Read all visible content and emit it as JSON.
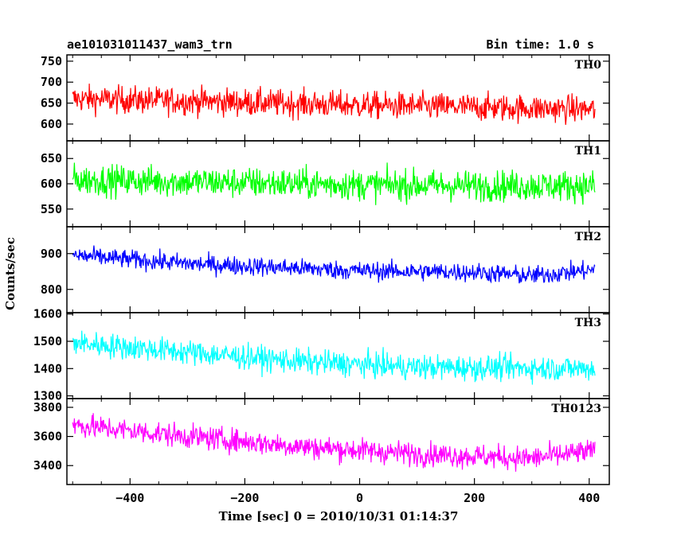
{
  "chart_data": {
    "type": "line",
    "title": "ae101031011437_wam3_trn",
    "bin_time_label": "Bin time: 1.0 s",
    "xlabel": "Time [sec] 0 = 2010/10/31 01:14:37",
    "ylabel": "Counts/sec",
    "xlim": [
      -510,
      435
    ],
    "x_range": [
      -500,
      410
    ],
    "x_ticks": [
      -400,
      -200,
      0,
      200,
      400
    ],
    "x_tick_labels": [
      "−400",
      "−200",
      "0",
      "200",
      "400"
    ],
    "panels": [
      {
        "name": "TH0",
        "color": "#ff0000",
        "ylim": [
          560,
          765
        ],
        "y_ticks": [
          600,
          650,
          700,
          750
        ],
        "y_tick_labels": [
          "600",
          "650",
          "700",
          "750"
        ],
        "trend": [
          [
            -500,
            660
          ],
          [
            -300,
            655
          ],
          [
            0,
            645
          ],
          [
            200,
            640
          ],
          [
            410,
            635
          ]
        ],
        "noise": 30
      },
      {
        "name": "TH1",
        "color": "#00ff00",
        "ylim": [
          515,
          685
        ],
        "y_ticks": [
          550,
          600,
          650
        ],
        "y_tick_labels": [
          "550",
          "600",
          "650"
        ],
        "trend": [
          [
            -500,
            608
          ],
          [
            -300,
            604
          ],
          [
            0,
            598
          ],
          [
            200,
            596
          ],
          [
            410,
            596
          ]
        ],
        "noise": 28
      },
      {
        "name": "TH2",
        "color": "#0000ff",
        "ylim": [
          735,
          975
        ],
        "y_ticks": [
          800,
          900
        ],
        "y_tick_labels": [
          "800",
          "900"
        ],
        "trend": [
          [
            -500,
            895
          ],
          [
            -300,
            872
          ],
          [
            0,
            852
          ],
          [
            200,
            848
          ],
          [
            300,
            838
          ],
          [
            410,
            855
          ]
        ],
        "noise": 24
      },
      {
        "name": "TH3",
        "color": "#00ffff",
        "ylim": [
          1290,
          1605
        ],
        "y_ticks": [
          1300,
          1400,
          1500,
          1600
        ],
        "y_tick_labels": [
          "1300",
          "1400",
          "1500",
          "1600"
        ],
        "trend": [
          [
            -500,
            1495
          ],
          [
            -300,
            1460
          ],
          [
            -100,
            1425
          ],
          [
            100,
            1405
          ],
          [
            410,
            1400
          ]
        ],
        "noise": 42
      },
      {
        "name": "TH0123",
        "color": "#ff00ff",
        "ylim": [
          3270,
          3860
        ],
        "y_ticks": [
          3400,
          3600,
          3800
        ],
        "y_tick_labels": [
          "3400",
          "3600",
          "3800"
        ],
        "trend": [
          [
            -500,
            3680
          ],
          [
            -300,
            3600
          ],
          [
            -100,
            3530
          ],
          [
            100,
            3480
          ],
          [
            300,
            3450
          ],
          [
            410,
            3500
          ]
        ],
        "noise": 75
      }
    ]
  }
}
